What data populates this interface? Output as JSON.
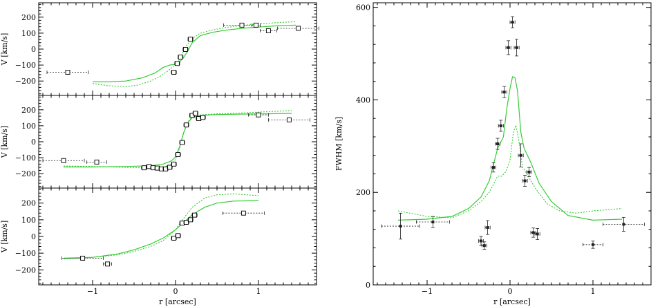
{
  "chart_data": [
    {
      "type": "scatter",
      "panel": "velocity-1",
      "xlim": [
        -1.65,
        1.7
      ],
      "ylim": [
        -290,
        290
      ],
      "xticks": [
        -1,
        0,
        1
      ],
      "xtick_labels": [
        "",
        "",
        ""
      ],
      "yticks": [
        -200,
        -100,
        0,
        100,
        200
      ],
      "ytick_labels": [
        "−200",
        "−100",
        "0",
        "100",
        "200"
      ],
      "xlabel": "",
      "ylabel": "V  [km/s]",
      "points": [
        {
          "x": -1.3,
          "y": -145,
          "xerr": 0.25,
          "yerr": 12
        },
        {
          "x": -0.02,
          "y": -145,
          "xerr": 0.03,
          "yerr": 12
        },
        {
          "x": 0.02,
          "y": -90,
          "xerr": 0.03,
          "yerr": 10
        },
        {
          "x": 0.06,
          "y": -50,
          "xerr": 0.03,
          "yerr": 10
        },
        {
          "x": 0.12,
          "y": -2,
          "xerr": 0.03,
          "yerr": 10
        },
        {
          "x": 0.18,
          "y": 62,
          "xerr": 0.03,
          "yerr": 10
        },
        {
          "x": 0.8,
          "y": 150,
          "xerr": 0.22,
          "yerr": 10
        },
        {
          "x": 0.97,
          "y": 150,
          "xerr": 0.05,
          "yerr": 8
        },
        {
          "x": 1.12,
          "y": 115,
          "xerr": 0.1,
          "yerr": 10
        },
        {
          "x": 1.48,
          "y": 130,
          "xerr": 0.25,
          "yerr": 10
        }
      ],
      "series": [
        {
          "style": "solid",
          "x": [
            -1.0,
            -0.8,
            -0.6,
            -0.4,
            -0.25,
            -0.15,
            -0.07,
            0.0,
            0.05,
            0.1,
            0.15,
            0.2,
            0.3,
            0.45,
            0.6,
            0.8,
            1.0,
            1.2,
            1.45
          ],
          "y": [
            -205,
            -205,
            -200,
            -180,
            -150,
            -115,
            -100,
            -95,
            -80,
            -50,
            -10,
            40,
            85,
            105,
            118,
            130,
            138,
            145,
            150
          ]
        },
        {
          "style": "dotted",
          "x": [
            -1.0,
            -0.8,
            -0.6,
            -0.45,
            -0.3,
            -0.2,
            -0.1,
            -0.03,
            0.03,
            0.08,
            0.13,
            0.2,
            0.3,
            0.45,
            0.6,
            0.8,
            1.0,
            1.2,
            1.45
          ],
          "y": [
            -215,
            -230,
            -235,
            -225,
            -200,
            -175,
            -140,
            -110,
            -80,
            -30,
            20,
            65,
            100,
            120,
            135,
            148,
            158,
            165,
            172
          ]
        }
      ]
    },
    {
      "type": "scatter",
      "panel": "velocity-2",
      "xlim": [
        -1.65,
        1.7
      ],
      "ylim": [
        -290,
        290
      ],
      "xticks": [
        -1,
        0,
        1
      ],
      "xtick_labels": [
        "",
        "",
        ""
      ],
      "yticks": [
        -200,
        -100,
        0,
        100,
        200
      ],
      "ytick_labels": [
        "−200",
        "−100",
        "0",
        "100",
        "200"
      ],
      "xlabel": "",
      "ylabel": "V  [km/s]",
      "points": [
        {
          "x": -1.35,
          "y": -118,
          "xerr": 0.25,
          "yerr": 10
        },
        {
          "x": -0.95,
          "y": -127,
          "xerr": 0.12,
          "yerr": 8
        },
        {
          "x": -0.38,
          "y": -163,
          "xerr": 0.03,
          "yerr": 10
        },
        {
          "x": -0.32,
          "y": -155,
          "xerr": 0.03,
          "yerr": 10
        },
        {
          "x": -0.27,
          "y": -163,
          "xerr": 0.03,
          "yerr": 10
        },
        {
          "x": -0.22,
          "y": -165,
          "xerr": 0.03,
          "yerr": 10
        },
        {
          "x": -0.17,
          "y": -170,
          "xerr": 0.03,
          "yerr": 10
        },
        {
          "x": -0.12,
          "y": -170,
          "xerr": 0.03,
          "yerr": 10
        },
        {
          "x": -0.07,
          "y": -160,
          "xerr": 0.03,
          "yerr": 10
        },
        {
          "x": -0.02,
          "y": -140,
          "xerr": 0.03,
          "yerr": 10
        },
        {
          "x": 0.03,
          "y": -80,
          "xerr": 0.03,
          "yerr": 10
        },
        {
          "x": 0.08,
          "y": -5,
          "xerr": 0.03,
          "yerr": 10
        },
        {
          "x": 0.13,
          "y": 105,
          "xerr": 0.03,
          "yerr": 10
        },
        {
          "x": 0.2,
          "y": 165,
          "xerr": 0.03,
          "yerr": 10
        },
        {
          "x": 0.24,
          "y": 178,
          "xerr": 0.03,
          "yerr": 10
        },
        {
          "x": 0.28,
          "y": 145,
          "xerr": 0.03,
          "yerr": 10
        },
        {
          "x": 0.33,
          "y": 152,
          "xerr": 0.03,
          "yerr": 10
        },
        {
          "x": 1.0,
          "y": 168,
          "xerr": 0.12,
          "yerr": 8
        },
        {
          "x": 1.37,
          "y": 137,
          "xerr": 0.25,
          "yerr": 8
        }
      ],
      "series": [
        {
          "style": "solid",
          "x": [
            -1.35,
            -1.0,
            -0.6,
            -0.3,
            -0.15,
            -0.05,
            0.0,
            0.05,
            0.1,
            0.15,
            0.2,
            0.3,
            0.5,
            0.8,
            1.1,
            1.4
          ],
          "y": [
            -158,
            -158,
            -155,
            -150,
            -140,
            -120,
            -95,
            -30,
            60,
            120,
            150,
            165,
            170,
            173,
            175,
            178
          ]
        },
        {
          "style": "dotted",
          "x": [
            -1.35,
            -1.0,
            -0.6,
            -0.3,
            -0.15,
            -0.05,
            0.0,
            0.05,
            0.1,
            0.15,
            0.2,
            0.3,
            0.5,
            0.8,
            1.1,
            1.4
          ],
          "y": [
            -152,
            -155,
            -160,
            -165,
            -160,
            -140,
            -110,
            -40,
            60,
            125,
            155,
            168,
            175,
            180,
            188,
            195
          ]
        }
      ]
    },
    {
      "type": "scatter",
      "panel": "velocity-3",
      "xlim": [
        -1.65,
        1.7
      ],
      "ylim": [
        -290,
        290
      ],
      "xticks": [
        -1,
        0,
        1
      ],
      "xtick_labels": [
        "−1",
        "0",
        "1"
      ],
      "yticks": [
        -200,
        -100,
        0,
        100,
        200
      ],
      "ytick_labels": [
        "−200",
        "−100",
        "0",
        "100",
        "200"
      ],
      "xlabel": "r  [arcsec]",
      "ylabel": "V  [km/s]",
      "points": [
        {
          "x": -1.12,
          "y": -130,
          "xerr": 0.25,
          "yerr": 10
        },
        {
          "x": -0.82,
          "y": -165,
          "xerr": 0.05,
          "yerr": 10
        },
        {
          "x": -0.02,
          "y": -10,
          "xerr": 0.03,
          "yerr": 10
        },
        {
          "x": 0.03,
          "y": 5,
          "xerr": 0.03,
          "yerr": 10
        },
        {
          "x": 0.08,
          "y": 80,
          "xerr": 0.03,
          "yerr": 10
        },
        {
          "x": 0.13,
          "y": 85,
          "xerr": 0.03,
          "yerr": 10
        },
        {
          "x": 0.18,
          "y": 100,
          "xerr": 0.03,
          "yerr": 10
        },
        {
          "x": 0.23,
          "y": 128,
          "xerr": 0.03,
          "yerr": 10
        },
        {
          "x": 0.82,
          "y": 140,
          "xerr": 0.25,
          "yerr": 8
        }
      ],
      "series": [
        {
          "style": "solid",
          "x": [
            -1.35,
            -1.0,
            -0.7,
            -0.5,
            -0.3,
            -0.15,
            0.0,
            0.1,
            0.2,
            0.35,
            0.5,
            0.7,
            1.0
          ],
          "y": [
            -130,
            -125,
            -105,
            -80,
            -45,
            -10,
            40,
            85,
            130,
            175,
            200,
            212,
            215
          ]
        },
        {
          "style": "dotted",
          "x": [
            -1.35,
            -1.0,
            -0.7,
            -0.5,
            -0.3,
            -0.15,
            0.0,
            0.1,
            0.2,
            0.35,
            0.5,
            0.7,
            1.0
          ],
          "y": [
            -135,
            -125,
            -110,
            -90,
            -60,
            -25,
            40,
            110,
            175,
            230,
            250,
            255,
            245
          ]
        }
      ]
    },
    {
      "type": "scatter",
      "panel": "fwhm",
      "xlim": [
        -1.65,
        1.7
      ],
      "ylim": [
        0,
        610
      ],
      "xticks": [
        -1,
        0,
        1
      ],
      "xtick_labels": [
        "−1",
        "0",
        "1"
      ],
      "yticks": [
        0,
        200,
        400,
        600
      ],
      "ytick_labels": [
        "0",
        "200",
        "400",
        "600"
      ],
      "xlabel": "r  [arcsec]",
      "ylabel": "FWHM  [km/s]",
      "points": [
        {
          "x": -1.32,
          "y": 127,
          "xerr": 0.23,
          "yerr": 28
        },
        {
          "x": -0.93,
          "y": 136,
          "xerr": 0.2,
          "yerr": 12
        },
        {
          "x": -0.35,
          "y": 95,
          "xerr": 0.03,
          "yerr": 10
        },
        {
          "x": -0.31,
          "y": 85,
          "xerr": 0.03,
          "yerr": 8
        },
        {
          "x": -0.27,
          "y": 124,
          "xerr": 0.03,
          "yerr": 15
        },
        {
          "x": -0.2,
          "y": 254,
          "xerr": 0.03,
          "yerr": 10
        },
        {
          "x": -0.15,
          "y": 305,
          "xerr": 0.03,
          "yerr": 12
        },
        {
          "x": -0.11,
          "y": 344,
          "xerr": 0.03,
          "yerr": 12
        },
        {
          "x": -0.07,
          "y": 417,
          "xerr": 0.03,
          "yerr": 12
        },
        {
          "x": -0.02,
          "y": 513,
          "xerr": 0.03,
          "yerr": 15
        },
        {
          "x": 0.03,
          "y": 568,
          "xerr": 0.03,
          "yerr": 12
        },
        {
          "x": 0.08,
          "y": 513,
          "xerr": 0.03,
          "yerr": 18
        },
        {
          "x": 0.13,
          "y": 280,
          "xerr": 0.03,
          "yerr": 25
        },
        {
          "x": 0.18,
          "y": 225,
          "xerr": 0.03,
          "yerr": 12
        },
        {
          "x": 0.23,
          "y": 244,
          "xerr": 0.03,
          "yerr": 10
        },
        {
          "x": 0.28,
          "y": 113,
          "xerr": 0.03,
          "yerr": 10
        },
        {
          "x": 0.33,
          "y": 110,
          "xerr": 0.03,
          "yerr": 12
        },
        {
          "x": 1.0,
          "y": 87,
          "xerr": 0.12,
          "yerr": 8
        },
        {
          "x": 1.37,
          "y": 131,
          "xerr": 0.25,
          "yerr": 15
        }
      ],
      "series": [
        {
          "style": "solid",
          "x": [
            -1.35,
            -1.0,
            -0.7,
            -0.5,
            -0.35,
            -0.25,
            -0.15,
            -0.08,
            -0.04,
            0.0,
            0.03,
            0.06,
            0.09,
            0.13,
            0.17,
            0.25,
            0.35,
            0.5,
            0.7,
            1.0,
            1.35
          ],
          "y": [
            140,
            142,
            148,
            165,
            190,
            225,
            295,
            320,
            380,
            425,
            450,
            448,
            420,
            330,
            295,
            265,
            220,
            180,
            150,
            140,
            142
          ]
        },
        {
          "style": "dotted",
          "x": [
            -1.35,
            -1.0,
            -0.7,
            -0.5,
            -0.35,
            -0.25,
            -0.15,
            -0.1,
            -0.05,
            0.0,
            0.04,
            0.07,
            0.1,
            0.15,
            0.22,
            0.3,
            0.45,
            0.6,
            0.8,
            1.0,
            1.35
          ],
          "y": [
            160,
            148,
            145,
            160,
            180,
            200,
            235,
            235,
            245,
            270,
            330,
            345,
            320,
            255,
            235,
            210,
            175,
            160,
            155,
            160,
            165
          ]
        }
      ]
    }
  ]
}
